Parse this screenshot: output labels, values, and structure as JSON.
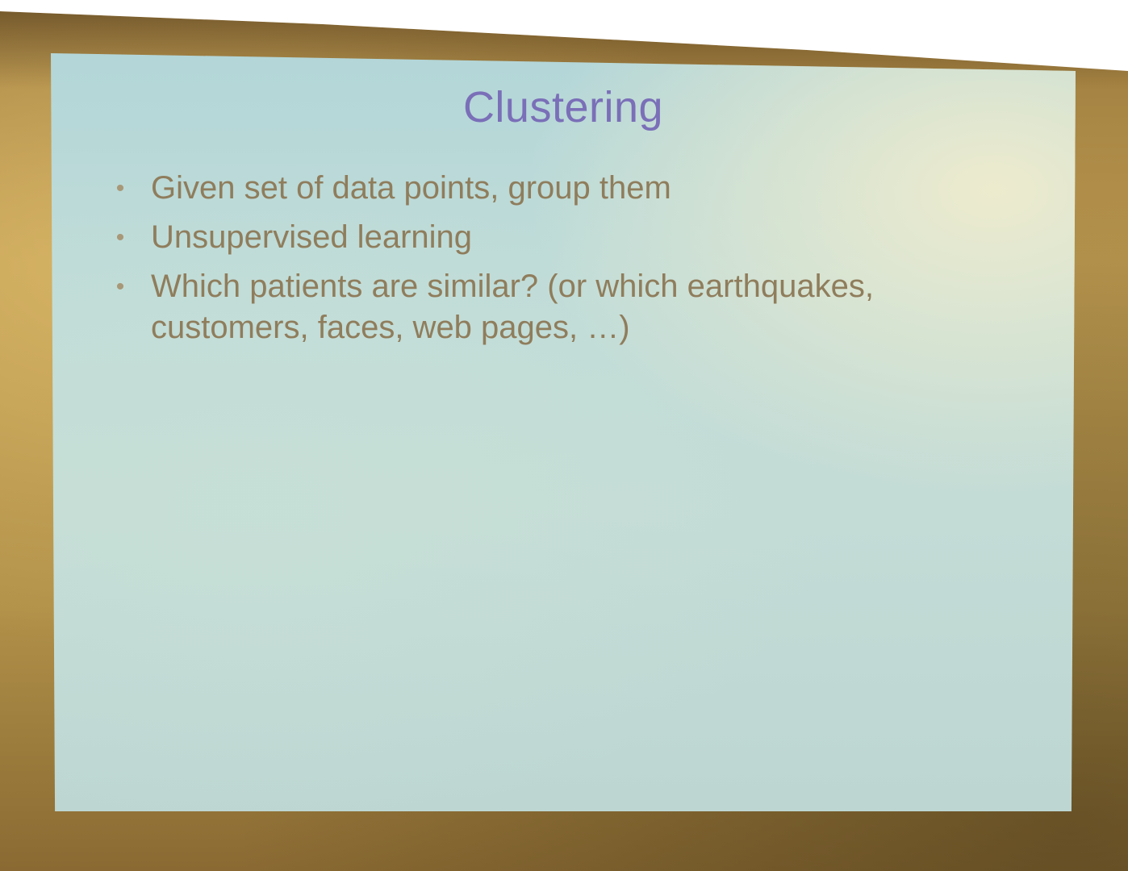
{
  "slide": {
    "title": "Clustering",
    "bullets": [
      {
        "marker": "•",
        "text": "Given set of data points, group them"
      },
      {
        "marker": "•",
        "text": "Unsupervised learning"
      },
      {
        "marker": "•",
        "text": "Which patients are similar? (or which earthquakes, customers, faces, web pages, …)"
      }
    ]
  },
  "colors": {
    "title": "#7a6fb8",
    "body_text": "#8f7d5c",
    "screen_background": "#c0dcd8",
    "wall": "#b09048"
  }
}
